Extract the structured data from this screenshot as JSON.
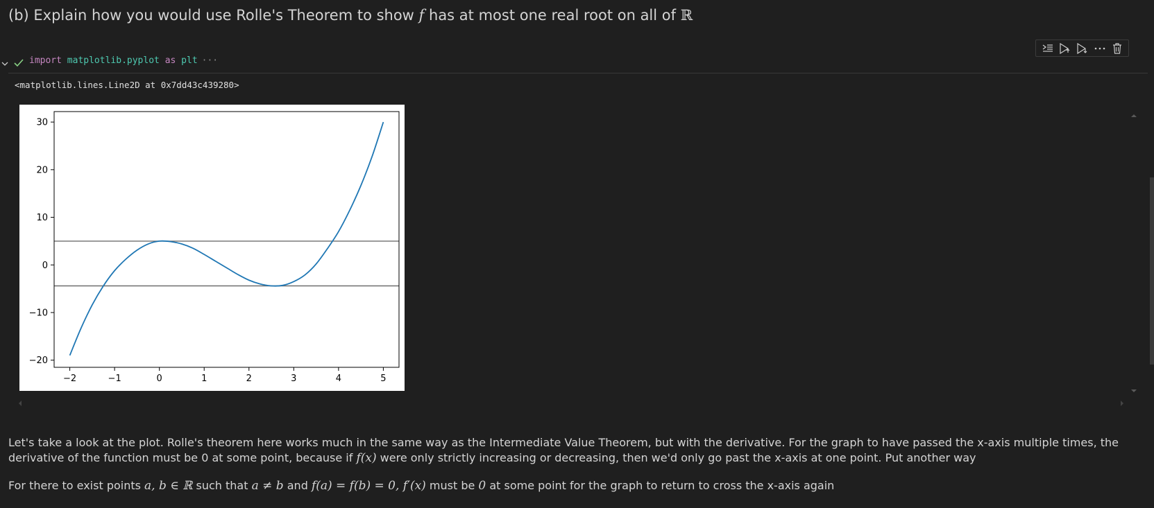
{
  "heading": {
    "prefix": "(b) Explain how you would use Rolle's Theorem to show ",
    "var": "f",
    "middle": " has at most one real root on all of ",
    "set": "ℝ"
  },
  "toolbar": {
    "buttons": [
      "split-cell",
      "execute-above",
      "execute-below",
      "more",
      "delete"
    ]
  },
  "cell": {
    "kw_import": "import",
    "module": "matplotlib.pyplot",
    "kw_as": "as",
    "alias": "plt",
    "collapsed_dots": "···",
    "output_text": "<matplotlib.lines.Line2D at 0x7dd43c439280>"
  },
  "chart_data": {
    "type": "line",
    "title": "",
    "xlabel": "",
    "ylabel": "",
    "xlim": [
      -2.35,
      5.35
    ],
    "ylim": [
      -21.5,
      32.2
    ],
    "xticks": [
      -2,
      -1,
      0,
      1,
      2,
      3,
      4,
      5
    ],
    "xtick_labels": [
      "−2",
      "−1",
      "0",
      "1",
      "2",
      "3",
      "4",
      "5"
    ],
    "yticks": [
      -20,
      -10,
      0,
      10,
      20,
      30
    ],
    "ytick_labels": [
      "−20",
      "−10",
      "0",
      "10",
      "20",
      "30"
    ],
    "grid": false,
    "series": [
      {
        "color": "#1f77b4",
        "x": [
          -2,
          -1.75,
          -1.5,
          -1.25,
          -1,
          -0.75,
          -0.5,
          -0.25,
          0,
          0.25,
          0.5,
          0.75,
          1,
          1.25,
          1.5,
          1.75,
          2,
          2.25,
          2.5,
          2.75,
          3,
          3.25,
          3.5,
          3.75,
          4,
          4.25,
          4.5,
          4.75,
          5
        ],
        "y": [
          -19,
          -13.3,
          -8.4,
          -4.4,
          -1.2,
          1.2,
          3.1,
          4.4,
          5,
          4.9,
          4.4,
          3.5,
          2.2,
          0.8,
          -0.6,
          -2.0,
          -3.2,
          -4.0,
          -4.4,
          -4.3,
          -3.5,
          -2.1,
          0.2,
          3.4,
          7.0,
          11.5,
          16.7,
          22.8,
          30
        ]
      }
    ],
    "hlines": [
      {
        "y": 5,
        "color": "#6e6e6e"
      },
      {
        "y": -4.4,
        "color": "#6e6e6e"
      }
    ]
  },
  "paragraph1": {
    "a": "Let's take a look at the plot. Rolle's theorem here works much in the same way as the Intermediate Value Theorem, but with the derivative. For the graph to have passed the x-axis multiple times, the derivative of the function must be 0 at some point, because if ",
    "fx": "f(x)",
    "b": " were only strictly increasing or decreasing, then we'd only go past the x-axis at one point. Put another way"
  },
  "paragraph2": {
    "a": "For there to exist points ",
    "ab": "a, b ∈ ℝ",
    "b": " such that ",
    "neq": "a ≠ b",
    "c": " and ",
    "eq": "f(a) = f(b) = 0, f′(x)",
    "d": " must be ",
    "zero": "0",
    "e": " at some point for the graph to return to cross the x-axis again"
  }
}
